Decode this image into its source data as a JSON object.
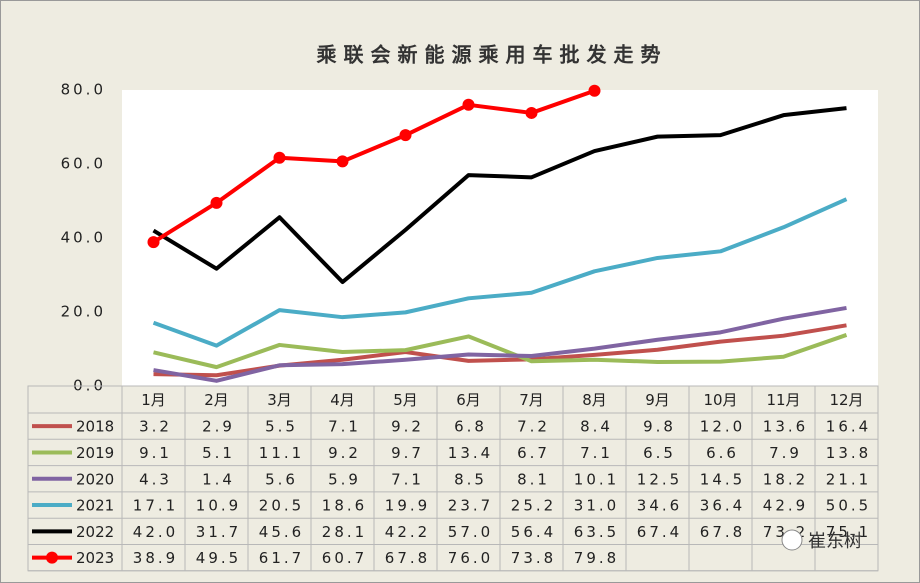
{
  "chart_data": {
    "type": "line",
    "title": "乘联会新能源乘用车批发走势",
    "categories": [
      "1月",
      "2月",
      "3月",
      "4月",
      "5月",
      "6月",
      "7月",
      "8月",
      "9月",
      "10月",
      "11月",
      "12月"
    ],
    "ylim": [
      0,
      80
    ],
    "yticks": [
      {
        "value": 0,
        "label": "0.0"
      },
      {
        "value": 20,
        "label": "20.0"
      },
      {
        "value": 40,
        "label": "40.0"
      },
      {
        "value": 60,
        "label": "60.0"
      },
      {
        "value": 80,
        "label": "80.0"
      }
    ],
    "series": [
      {
        "name": "2018",
        "color": "#C0504D",
        "values": [
          3.2,
          2.9,
          5.5,
          7.1,
          9.2,
          6.8,
          7.2,
          8.4,
          9.8,
          12.0,
          13.6,
          16.4
        ],
        "value_labels": [
          "3.2",
          "2.9",
          "5.5",
          "7.1",
          "9.2",
          "6.8",
          "7.2",
          "8.4",
          "9.8",
          "12.0",
          "13.6",
          "16.4"
        ]
      },
      {
        "name": "2019",
        "color": "#9BBB59",
        "values": [
          9.1,
          5.1,
          11.1,
          9.2,
          9.7,
          13.4,
          6.7,
          7.1,
          6.5,
          6.6,
          7.9,
          13.8
        ],
        "value_labels": [
          "9.1",
          "5.1",
          "11.1",
          "9.2",
          "9.7",
          "13.4",
          "6.7",
          "7.1",
          "6.5",
          "6.6",
          "7.9",
          "13.8"
        ]
      },
      {
        "name": "2020",
        "color": "#8064A2",
        "values": [
          4.3,
          1.4,
          5.6,
          5.9,
          7.1,
          8.5,
          8.1,
          10.1,
          12.5,
          14.5,
          18.2,
          21.1
        ],
        "value_labels": [
          "4.3",
          "1.4",
          "5.6",
          "5.9",
          "7.1",
          "8.5",
          "8.1",
          "10.1",
          "12.5",
          "14.5",
          "18.2",
          "21.1"
        ]
      },
      {
        "name": "2021",
        "color": "#4BACC6",
        "values": [
          17.1,
          10.9,
          20.5,
          18.6,
          19.9,
          23.7,
          25.2,
          31.0,
          34.6,
          36.4,
          42.9,
          50.5
        ],
        "value_labels": [
          "17.1",
          "10.9",
          "20.5",
          "18.6",
          "19.9",
          "23.7",
          "25.2",
          "31.0",
          "34.6",
          "36.4",
          "42.9",
          "50.5"
        ]
      },
      {
        "name": "2022",
        "color": "#000000",
        "values": [
          42.0,
          31.7,
          45.6,
          28.1,
          42.2,
          57.0,
          56.4,
          63.5,
          67.4,
          67.8,
          73.2,
          75.1
        ],
        "value_labels": [
          "42.0",
          "31.7",
          "45.6",
          "28.1",
          "42.2",
          "57.0",
          "56.4",
          "63.5",
          "67.4",
          "67.8",
          "73.2",
          "75.1"
        ]
      },
      {
        "name": "2023",
        "color": "#FF0000",
        "markers": true,
        "values": [
          38.9,
          49.5,
          61.7,
          60.7,
          67.8,
          76.0,
          73.8,
          79.8,
          null,
          null,
          null,
          null
        ],
        "value_labels": [
          "38.9",
          "49.5",
          "61.7",
          "60.7",
          "67.8",
          "76.0",
          "73.8",
          "79.8",
          null,
          null,
          null,
          null
        ]
      }
    ],
    "watermark": "崔东树"
  }
}
